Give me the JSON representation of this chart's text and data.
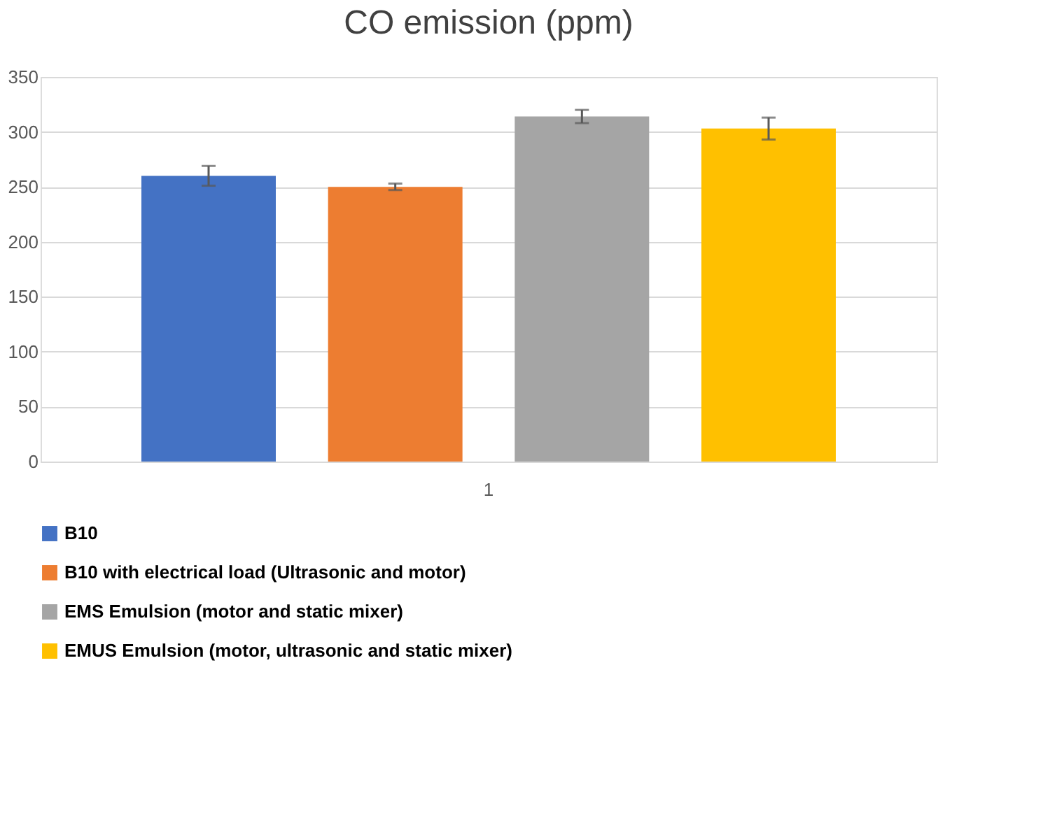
{
  "chart_data": {
    "type": "bar",
    "title": "CO emission (ppm)",
    "categories": [
      "1"
    ],
    "series": [
      {
        "name": "B10",
        "color": "#4472c4",
        "values": [
          260
        ],
        "errors": [
          9
        ]
      },
      {
        "name": "B10 with electrical load (Ultrasonic and motor)",
        "color": "#ed7d31",
        "values": [
          250
        ],
        "errors": [
          3
        ]
      },
      {
        "name": "EMS Emulsion (motor and static mixer)",
        "color": "#a5a5a5",
        "values": [
          314
        ],
        "errors": [
          6
        ]
      },
      {
        "name": "EMUS Emulsion (motor, ultrasonic and static mixer)",
        "color": "#ffc000",
        "values": [
          303
        ],
        "errors": [
          10
        ]
      }
    ],
    "ylim": [
      0,
      350
    ],
    "yticks": [
      0,
      50,
      100,
      150,
      200,
      250,
      300,
      350
    ],
    "grid": "y",
    "legend": "bottom"
  }
}
